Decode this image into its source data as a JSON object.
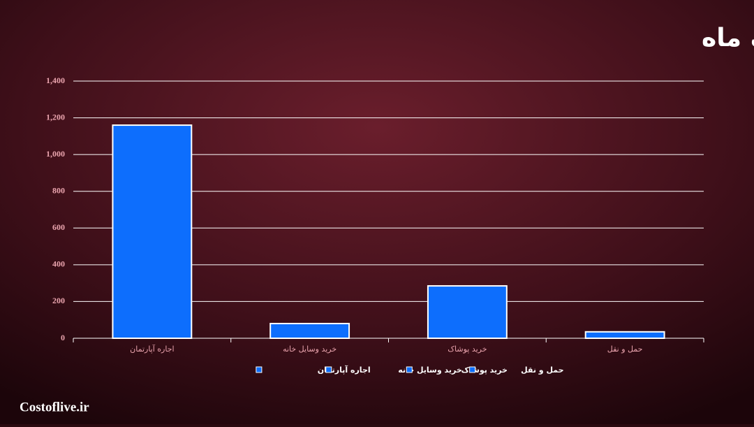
{
  "chart_data": {
    "type": "bar",
    "title": "کلیات هزینه ها برای یک ماه",
    "categories": [
      "اجاره آپارتمان",
      "خرید وسایل خانه",
      "خرید پوشاک",
      "حمل و نقل"
    ],
    "values": [
      1160,
      80,
      285,
      35
    ],
    "color": "#0d6efd",
    "ylim": [
      0,
      1400
    ],
    "yticks": [
      0,
      200,
      400,
      600,
      800,
      {
        "value": 1000,
        "label": "1,000"
      },
      {
        "value": 1200,
        "label": "1,200"
      },
      {
        "value": 1400,
        "label": "1,400"
      }
    ],
    "grid": true,
    "legend": "bottom"
  },
  "footer": "Costoflive.ir"
}
